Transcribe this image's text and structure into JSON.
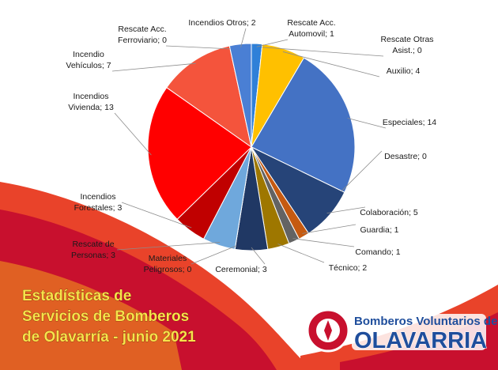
{
  "chart_data": {
    "type": "pie",
    "title": [
      "Estadísticas de",
      "Servicios de Bomberos",
      "de Olavarría - junio 2021"
    ],
    "values": [
      1,
      0,
      4,
      14,
      0,
      5,
      1,
      1,
      2,
      3,
      0,
      3,
      3,
      13,
      7,
      0,
      2
    ],
    "value_labels": [
      [
        "Rescate Acc.",
        "Automovil; 1"
      ],
      [
        "Rescate Otras",
        "Asist.; 0"
      ],
      [
        "Auxilio; 4"
      ],
      [
        "Especiales; 14"
      ],
      [
        "Desastre; 0"
      ],
      [
        "Colaboración; 5"
      ],
      [
        "Guardia; 1"
      ],
      [
        "Comando; 1"
      ],
      [
        "Técnico; 2"
      ],
      [
        "Ceremonial; 3"
      ],
      [
        "Materiales",
        "Peligrosos; 0"
      ],
      [
        "Rescate de",
        "Personas; 3"
      ],
      [
        "Incendios",
        "Forestales; 3"
      ],
      [
        "Incendios",
        "Vivienda; 13"
      ],
      [
        "Incendio",
        "Vehículos; 7"
      ],
      [
        "Rescate Acc.",
        "Ferroviario; 0"
      ],
      [
        "Incendios Otros; 2"
      ]
    ],
    "colors": [
      "#2f80d8",
      "#a5a5a5",
      "#ffc000",
      "#4472c4",
      "#8a8a8a",
      "#264478",
      "#c55a11",
      "#636363",
      "#9e7700",
      "#203864",
      "#7f7f7f",
      "#6fa8dc",
      "#c00000",
      "#ff0000",
      "#f4543c",
      "#999999",
      "#4a7fd4"
    ]
  },
  "branding": {
    "line1": "Bomberos Voluntarios de",
    "line2": "OLAVARRIA"
  }
}
